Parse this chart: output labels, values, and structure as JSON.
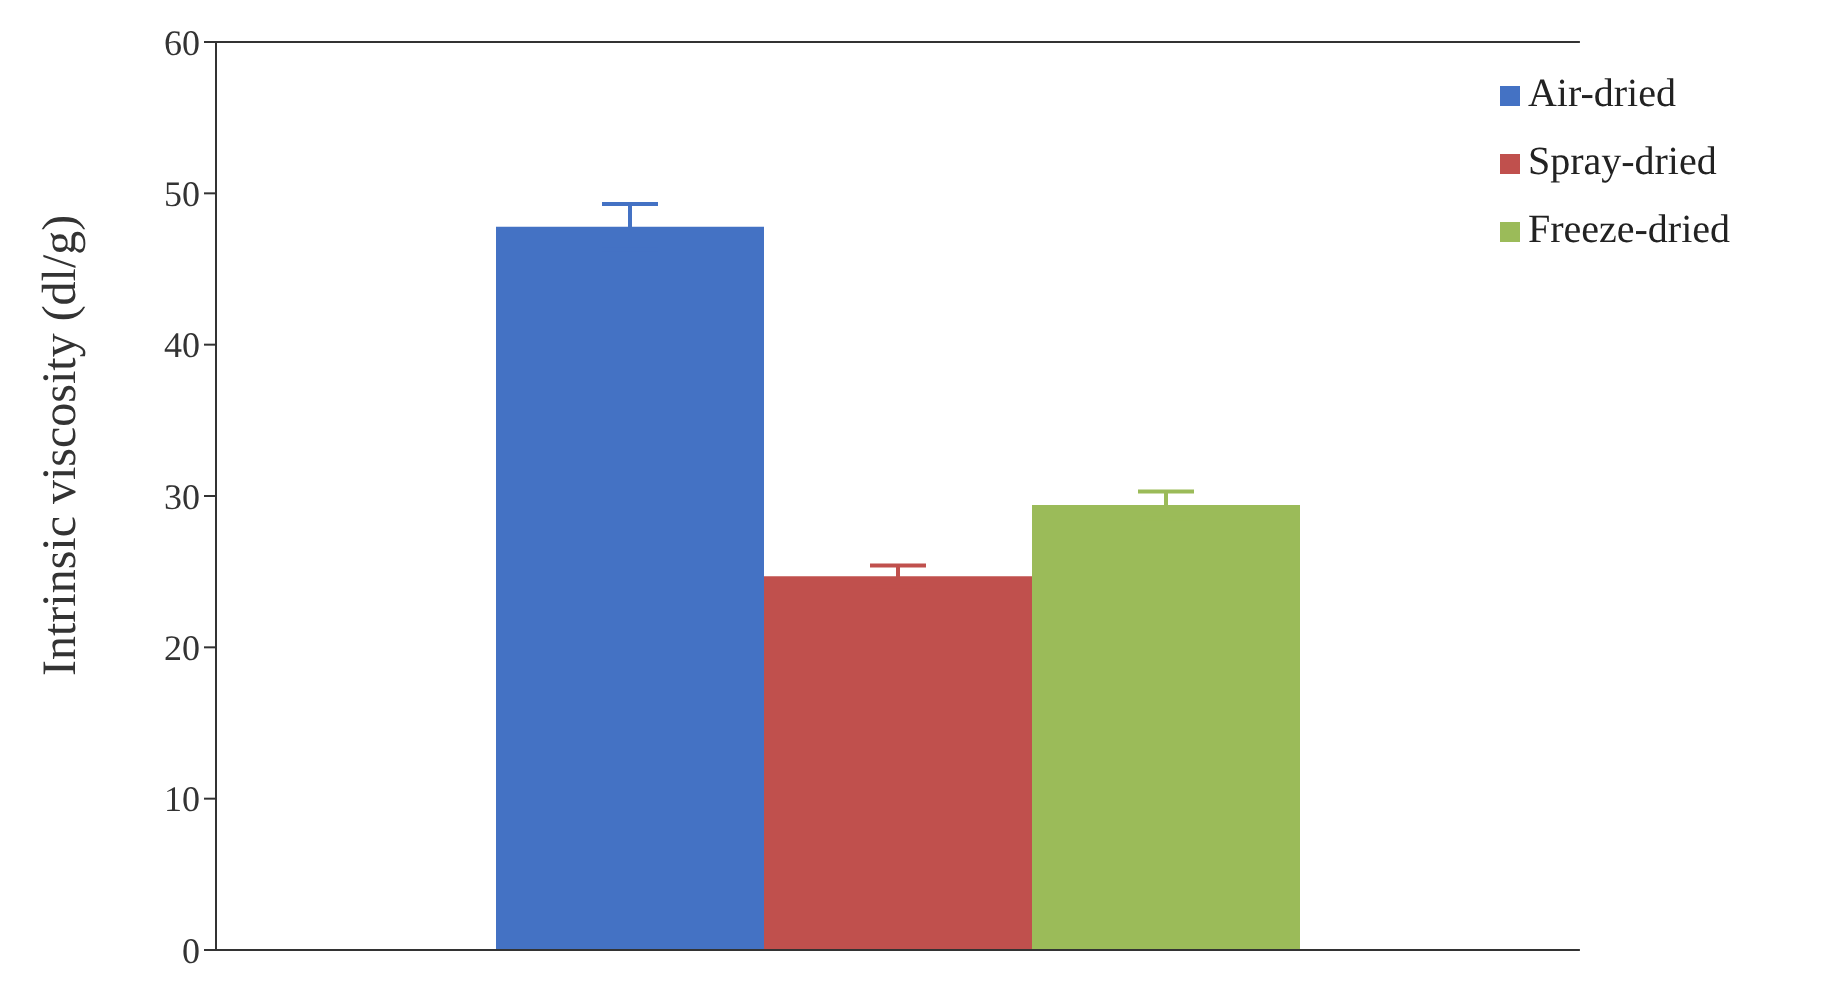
{
  "chart_data": {
    "type": "bar",
    "ylabel": "Intrinsic viscosity (dl/g)",
    "categories": [
      null
    ],
    "series": [
      {
        "name": "Air-dried",
        "color": "#4472c4",
        "values": [
          47.8
        ],
        "errors": [
          1.5
        ]
      },
      {
        "name": "Spray-dried",
        "color": "#c0504d",
        "values": [
          24.7
        ],
        "errors": [
          0.7
        ]
      },
      {
        "name": "Freeze-dried",
        "color": "#9bbb59",
        "values": [
          29.4
        ],
        "errors": [
          0.9
        ]
      }
    ],
    "ylim": [
      0,
      60
    ],
    "yticks": [
      0,
      10,
      20,
      30,
      40,
      50,
      60
    ],
    "tick_labels": "y",
    "legend": "top right"
  }
}
